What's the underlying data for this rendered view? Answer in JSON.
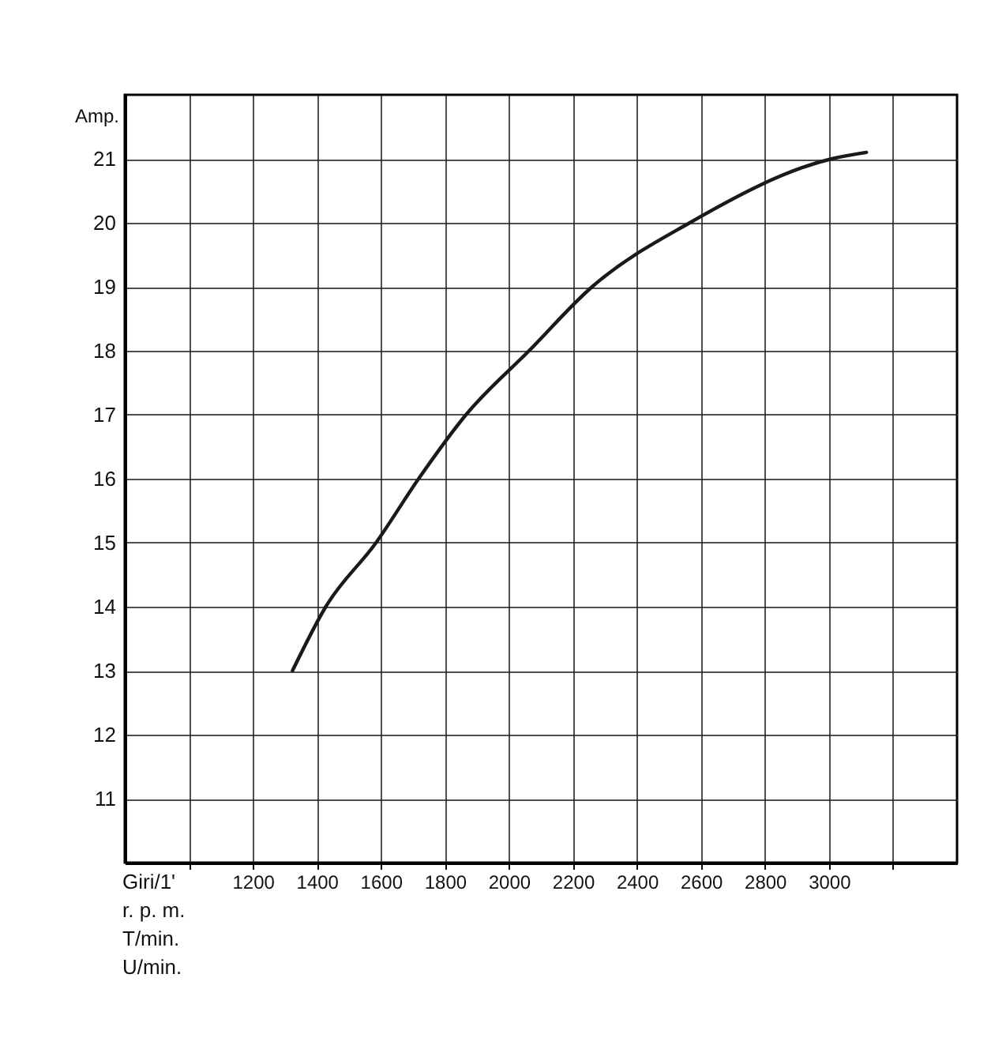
{
  "chart_data": {
    "type": "line",
    "xlabel": "Giri/1'\nr. p. m.\nT/min.\nU/min.",
    "ylabel": "Amp.",
    "x": [
      1324,
      1428,
      1585,
      1718,
      1866,
      2063,
      2260,
      2565,
      3009,
      3117
    ],
    "series": [
      {
        "color": "#1a1a1a",
        "values": [
          13,
          14,
          15,
          16,
          17,
          18,
          19,
          20,
          21,
          21.1
        ]
      }
    ],
    "xlim": [
      800,
      3400
    ],
    "ylim": [
      10,
      22
    ],
    "xticks": [
      {
        "value": 1000,
        "label": null
      },
      1200,
      1400,
      1600,
      1800,
      2000,
      2200,
      2400,
      2600,
      2800,
      3000,
      {
        "value": 3200,
        "label": null
      }
    ],
    "yticks": [
      11,
      12,
      13,
      14,
      15,
      16,
      17,
      18,
      19,
      20,
      21
    ],
    "grid": true,
    "line_style": "solid",
    "marker": "none"
  }
}
